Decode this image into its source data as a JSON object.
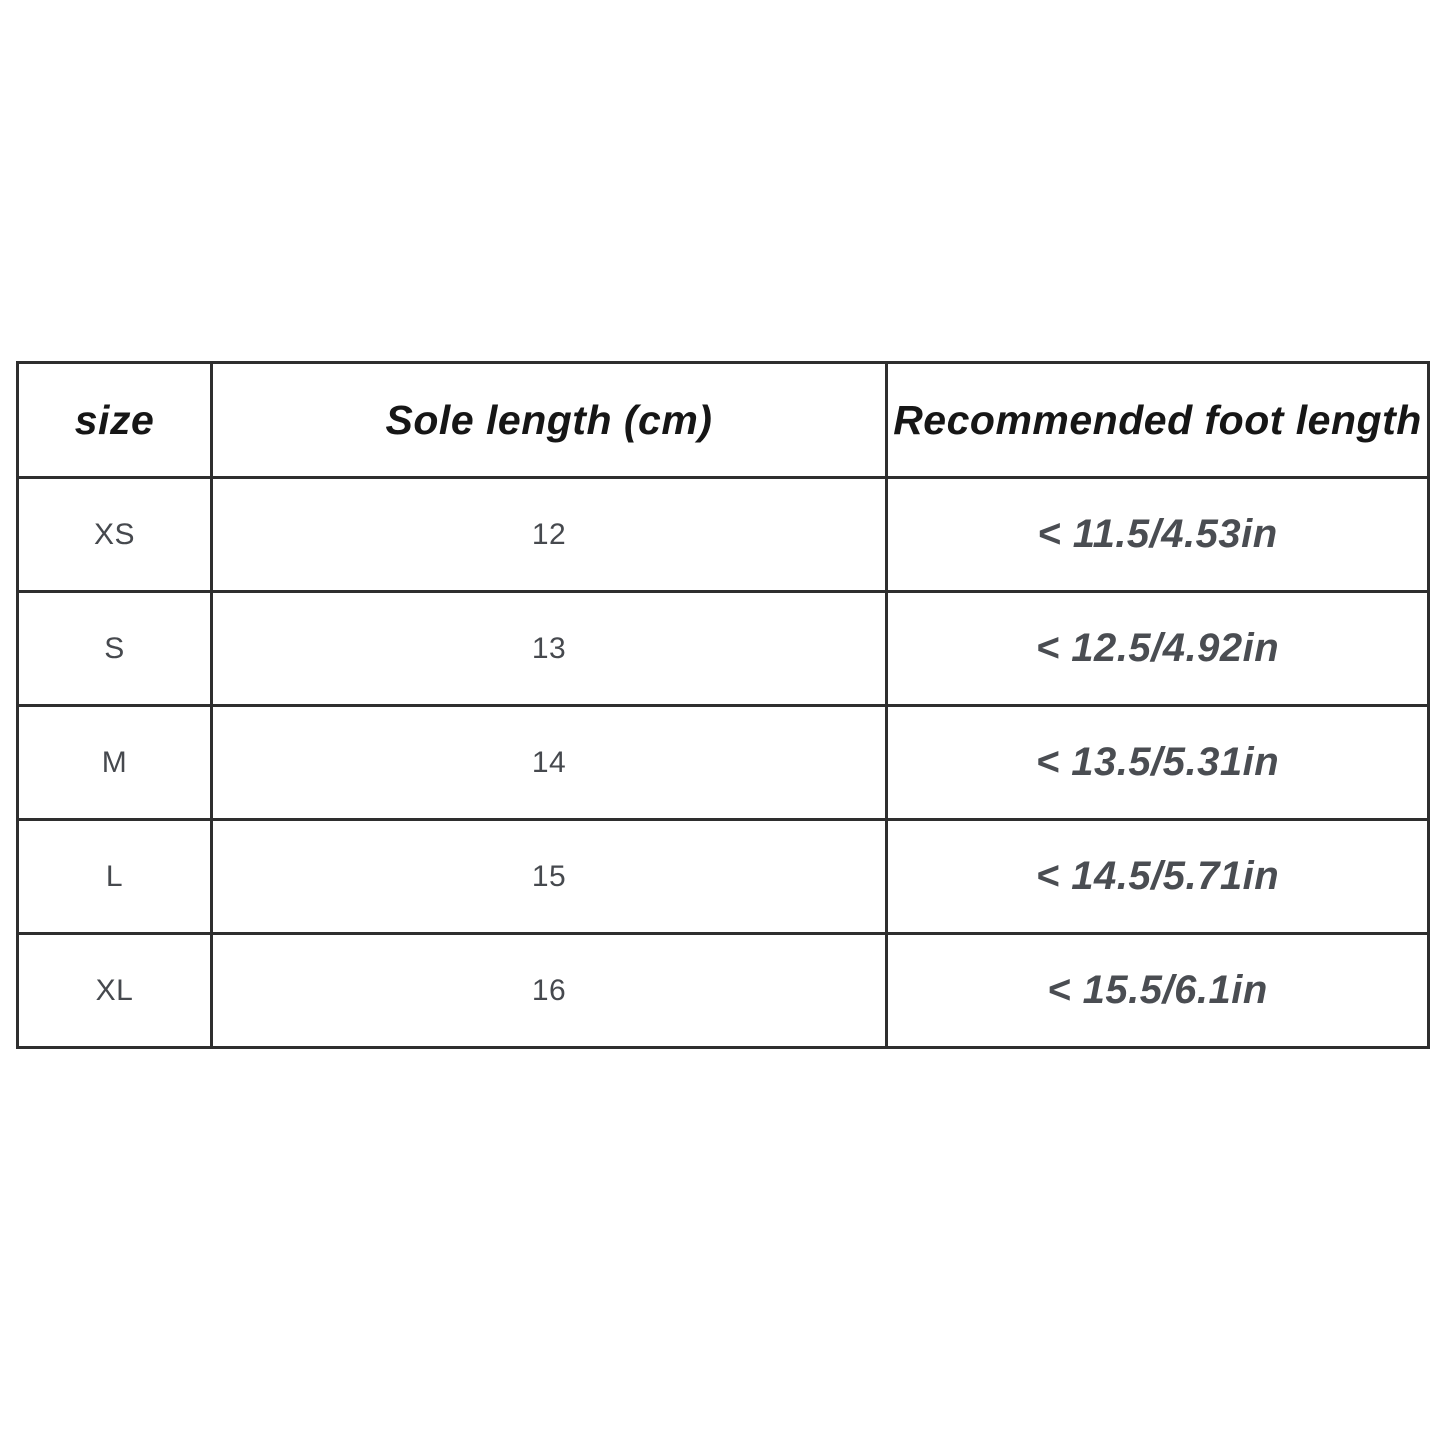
{
  "table": {
    "columns": [
      {
        "label": "size"
      },
      {
        "label": "Sole length (cm)"
      },
      {
        "label": "Recommended foot length"
      }
    ],
    "rows": [
      {
        "size": "XS",
        "sole_length_cm": "12",
        "recommended_foot_length": "< 11.5/4.53in"
      },
      {
        "size": "S",
        "sole_length_cm": "13",
        "recommended_foot_length": "< 12.5/4.92in"
      },
      {
        "size": "M",
        "sole_length_cm": "14",
        "recommended_foot_length": "< 13.5/5.31in"
      },
      {
        "size": "L",
        "sole_length_cm": "15",
        "recommended_foot_length": "< 14.5/5.71in"
      },
      {
        "size": "XL",
        "sole_length_cm": "16",
        "recommended_foot_length": "< 15.5/6.1in"
      }
    ],
    "colors": {
      "border": "#2e2e2e",
      "header_text": "#161616",
      "body_text": "#46494e",
      "background": "#ffffff"
    }
  },
  "chart_data": {
    "type": "table",
    "title": "",
    "columns": [
      "size",
      "Sole length (cm)",
      "Recommended foot length"
    ],
    "rows": [
      [
        "XS",
        12,
        "< 11.5/4.53in"
      ],
      [
        "S",
        13,
        "< 12.5/4.92in"
      ],
      [
        "M",
        14,
        "< 13.5/5.31in"
      ],
      [
        "L",
        15,
        "< 14.5/5.71in"
      ],
      [
        "XL",
        16,
        "< 15.5/6.1in"
      ]
    ]
  }
}
